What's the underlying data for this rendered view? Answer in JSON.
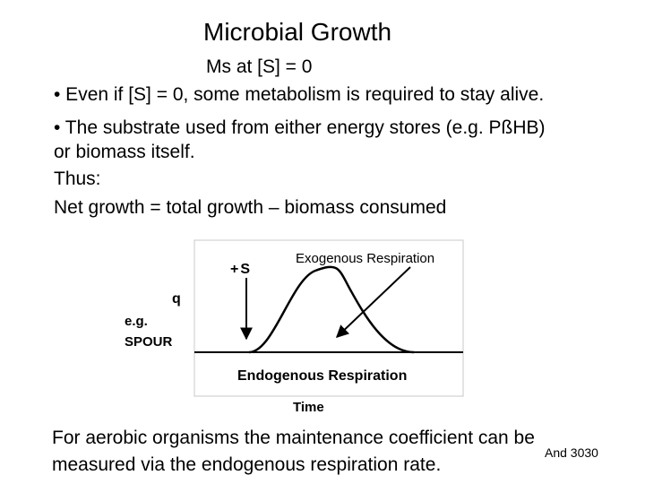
{
  "slide": {
    "title": "Microbial Growth",
    "subtitle": "Ms at [S] = 0",
    "bullets": [
      "• Even if [S] = 0, some metabolism is required to stay alive.",
      "• The substrate used from either energy stores (e.g. PßHB)",
      "or biomass itself."
    ],
    "thus": "Thus:",
    "net_growth": "Net growth = total growth – biomass consumed",
    "footer_line1": "For aerobic organisms the maintenance coefficient can be",
    "footer_line2": "measured via the endogenous respiration rate.",
    "reference": "And 3030"
  },
  "diagram": {
    "substrate_label": "+S",
    "exogenous_label": "Exogenous Respiration",
    "endogenous_label": "Endogenous Respiration",
    "y_label": "q",
    "y_example_line1": "e.g.",
    "y_example_line2": "SPOUR",
    "x_label": "Time"
  }
}
